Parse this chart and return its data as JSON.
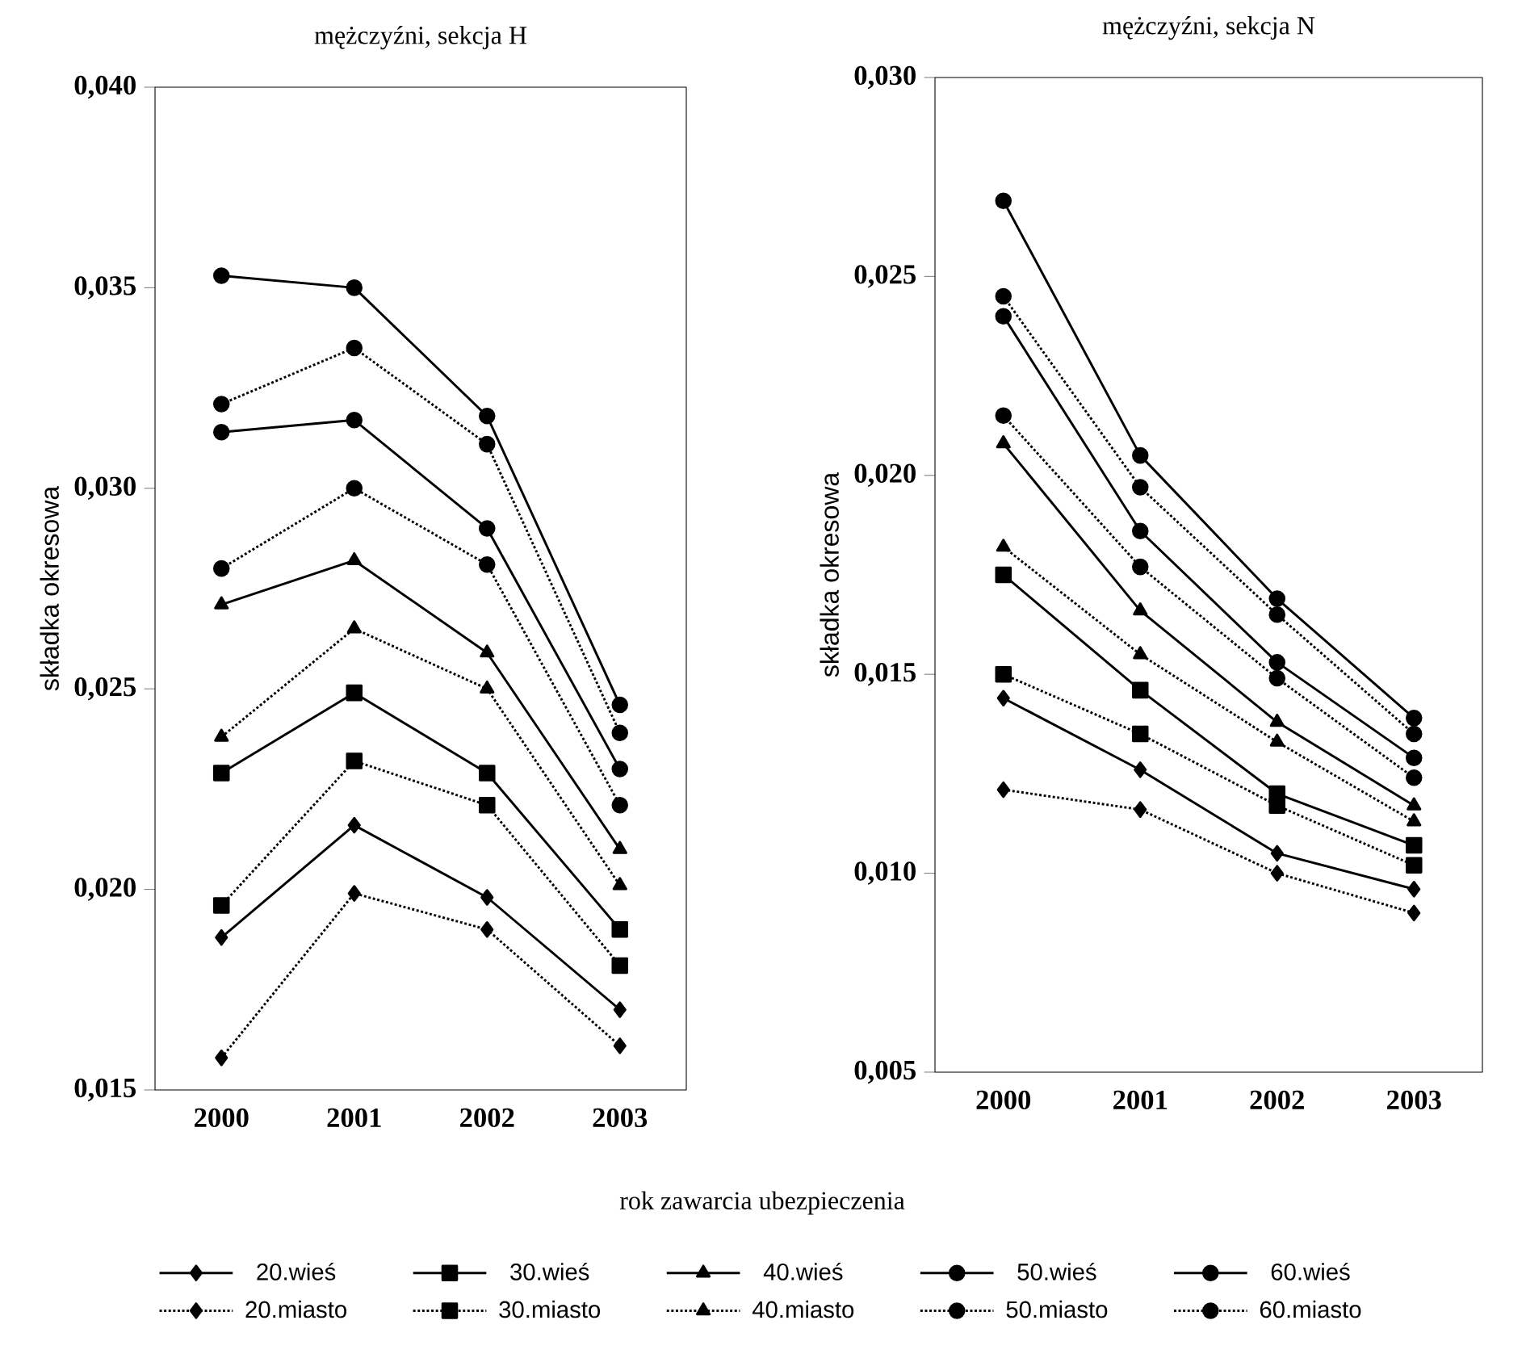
{
  "chart_data": [
    {
      "type": "line",
      "title": "mężczyźni, sekcja H",
      "xlabel": "rok zawarcia ubezpieczenia",
      "ylabel": "składka okresowa",
      "categories": [
        "2000",
        "2001",
        "2002",
        "2003"
      ],
      "ylim": [
        0.015,
        0.04
      ],
      "yticks": [
        {
          "value": 0.015,
          "label": "0,015"
        },
        {
          "value": 0.02,
          "label": "0,020"
        },
        {
          "value": 0.025,
          "label": "0,025"
        },
        {
          "value": 0.03,
          "label": "0,030"
        },
        {
          "value": 0.035,
          "label": "0,035"
        },
        {
          "value": 0.04,
          "label": "0,040"
        }
      ],
      "legend": "bottom",
      "series": [
        {
          "name": "20.wieś",
          "color": "#000000",
          "marker": "diamond",
          "line_style": "solid",
          "values": [
            0.0188,
            0.0216,
            0.0198,
            0.017
          ]
        },
        {
          "name": "30.wieś",
          "color": "#000000",
          "marker": "square",
          "line_style": "solid",
          "values": [
            0.0229,
            0.0249,
            0.0229,
            0.019
          ]
        },
        {
          "name": "40.wieś",
          "color": "#000000",
          "marker": "triangle",
          "line_style": "solid",
          "values": [
            0.0271,
            0.0282,
            0.0259,
            0.021
          ]
        },
        {
          "name": "50.wieś",
          "color": "#000000",
          "marker": "circle",
          "line_style": "solid",
          "values": [
            0.0314,
            0.0317,
            0.029,
            0.023
          ]
        },
        {
          "name": "60.wieś",
          "color": "#000000",
          "marker": "circle",
          "line_style": "solid",
          "values": [
            0.0353,
            0.035,
            0.0318,
            0.0246
          ]
        },
        {
          "name": "20.miasto",
          "color": "#000000",
          "marker": "diamond",
          "line_style": "dotted",
          "values": [
            0.0158,
            0.0199,
            0.019,
            0.0161
          ]
        },
        {
          "name": "30.miasto",
          "color": "#000000",
          "marker": "square",
          "line_style": "dotted",
          "values": [
            0.0196,
            0.0232,
            0.0221,
            0.0181
          ]
        },
        {
          "name": "40.miasto",
          "color": "#000000",
          "marker": "triangle",
          "line_style": "dotted",
          "values": [
            0.0238,
            0.0265,
            0.025,
            0.0201
          ]
        },
        {
          "name": "50.miasto",
          "color": "#000000",
          "marker": "circle",
          "line_style": "dotted",
          "values": [
            0.028,
            0.03,
            0.0281,
            0.0221
          ]
        },
        {
          "name": "60.miasto",
          "color": "#000000",
          "marker": "circle",
          "line_style": "dotted",
          "values": [
            0.0321,
            0.0335,
            0.0311,
            0.0239
          ]
        }
      ]
    },
    {
      "type": "line",
      "title": "mężczyźni, sekcja N",
      "ylabel": "składka okresowa",
      "categories": [
        "2000",
        "2001",
        "2002",
        "2003"
      ],
      "ylim": [
        0.005,
        0.03
      ],
      "yticks": [
        {
          "value": 0.005,
          "label": "0,005"
        },
        {
          "value": 0.01,
          "label": "0,010"
        },
        {
          "value": 0.015,
          "label": "0,015"
        },
        {
          "value": 0.02,
          "label": "0,020"
        },
        {
          "value": 0.025,
          "label": "0,025"
        },
        {
          "value": 0.03,
          "label": "0,030"
        }
      ],
      "series": [
        {
          "color": "#000000",
          "marker": "diamond",
          "line_style": "solid",
          "values": [
            0.0144,
            0.0126,
            0.0105,
            0.0096
          ]
        },
        {
          "color": "#000000",
          "marker": "square",
          "line_style": "solid",
          "values": [
            0.0175,
            0.0146,
            0.012,
            0.0107
          ]
        },
        {
          "color": "#000000",
          "marker": "triangle",
          "line_style": "solid",
          "values": [
            0.0208,
            0.0166,
            0.0138,
            0.0117
          ]
        },
        {
          "color": "#000000",
          "marker": "circle",
          "line_style": "solid",
          "values": [
            0.024,
            0.0186,
            0.0153,
            0.0129
          ]
        },
        {
          "color": "#000000",
          "marker": "circle",
          "line_style": "solid",
          "values": [
            0.0269,
            0.0205,
            0.0169,
            0.0139
          ]
        },
        {
          "color": "#000000",
          "marker": "diamond",
          "line_style": "dotted",
          "values": [
            0.0121,
            0.0116,
            0.01,
            0.009
          ]
        },
        {
          "color": "#000000",
          "marker": "square",
          "line_style": "dotted",
          "values": [
            0.015,
            0.0135,
            0.0117,
            0.0102
          ]
        },
        {
          "color": "#000000",
          "marker": "triangle",
          "line_style": "dotted",
          "values": [
            0.0182,
            0.0155,
            0.0133,
            0.0113
          ]
        },
        {
          "color": "#000000",
          "marker": "circle",
          "line_style": "dotted",
          "values": [
            0.0215,
            0.0177,
            0.0149,
            0.0124
          ]
        },
        {
          "color": "#000000",
          "marker": "circle",
          "line_style": "dotted",
          "values": [
            0.0245,
            0.0197,
            0.0165,
            0.0135
          ]
        }
      ]
    }
  ]
}
